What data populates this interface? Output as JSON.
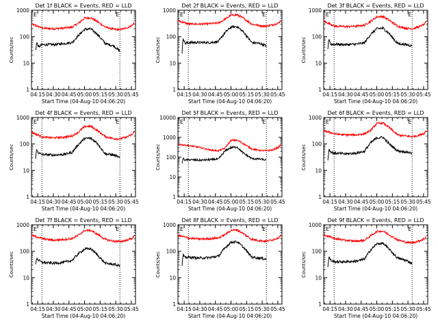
{
  "figure": {
    "x_start_label": "Start Time (04-Aug-10 04:06:20)",
    "xtick_labels": [
      "04:15",
      "04:30",
      "04:45",
      "05:00",
      "05:15",
      "05:30",
      "05:45"
    ],
    "ytick_labels": [
      "1",
      "10",
      "100",
      "1000"
    ],
    "ylabel": "Counts/sec",
    "marker_label": "E"
  },
  "chart_data": [
    {
      "type": "line",
      "title": "Det 1f BLACK = Events, RED = LLD",
      "xlabel": "Start Time (04-Aug-10 04:06:20)",
      "ylabel": "Counts/sec",
      "yscale": "log",
      "ylim": [
        1,
        1000
      ],
      "xlim": [
        "04:09",
        "05:49"
      ],
      "markers": [
        "04:19",
        "05:34"
      ],
      "series": [
        {
          "color": "#ff0000",
          "x": [
            "04:09",
            "04:20",
            "04:30",
            "04:40",
            "04:48",
            "04:54",
            "05:00",
            "05:06",
            "05:12",
            "05:20",
            "05:28",
            "05:34",
            "05:40",
            "05:46",
            "05:48"
          ],
          "y": [
            300,
            210,
            200,
            210,
            230,
            320,
            500,
            520,
            380,
            230,
            190,
            185,
            210,
            270,
            350
          ]
        },
        {
          "color": "#000000",
          "x": [
            "04:13",
            "04:14",
            "04:16",
            "04:19",
            "04:30",
            "04:40",
            "04:48",
            "04:54",
            "05:00",
            "05:06",
            "05:12",
            "05:20",
            "05:28",
            "05:34"
          ],
          "y": [
            30,
            60,
            40,
            50,
            50,
            55,
            60,
            110,
            190,
            195,
            130,
            55,
            45,
            28
          ]
        }
      ]
    },
    {
      "type": "line",
      "title": "Det 2f BLACK = Events, RED = LLD",
      "xlabel": "Start Time (04-Aug-10 04:06:20)",
      "ylabel": "Counts/sec",
      "yscale": "log",
      "ylim": [
        1,
        1000
      ],
      "xlim": [
        "04:09",
        "05:49"
      ],
      "markers": [
        "04:19",
        "05:34"
      ],
      "series": [
        {
          "color": "#ff0000",
          "x": [
            "04:09",
            "04:20",
            "04:30",
            "04:40",
            "04:48",
            "04:54",
            "05:00",
            "05:06",
            "05:12",
            "05:20",
            "05:28",
            "05:34",
            "05:40",
            "05:46",
            "05:48"
          ],
          "y": [
            400,
            300,
            300,
            310,
            330,
            450,
            650,
            670,
            500,
            300,
            260,
            250,
            280,
            330,
            420
          ]
        },
        {
          "color": "#000000",
          "x": [
            "04:13",
            "04:14",
            "04:16",
            "04:19",
            "04:30",
            "04:40",
            "04:48",
            "04:54",
            "05:00",
            "05:06",
            "05:12",
            "05:20",
            "05:28",
            "05:34"
          ],
          "y": [
            25,
            90,
            55,
            60,
            60,
            60,
            65,
            140,
            230,
            240,
            150,
            60,
            55,
            45
          ]
        }
      ]
    },
    {
      "type": "line",
      "title": "Det 3f BLACK = Events, RED = LLD",
      "xlabel": "Start Time (04-Aug-10 04:06:20)",
      "ylabel": "Counts/sec",
      "yscale": "log",
      "ylim": [
        1,
        1000
      ],
      "xlim": [
        "04:09",
        "05:49"
      ],
      "markers": [
        "04:19",
        "05:34"
      ],
      "series": [
        {
          "color": "#ff0000",
          "x": [
            "04:09",
            "04:20",
            "04:30",
            "04:40",
            "04:48",
            "04:54",
            "05:00",
            "05:06",
            "05:12",
            "05:20",
            "05:28",
            "05:34",
            "05:40",
            "05:46",
            "05:48"
          ],
          "y": [
            380,
            250,
            240,
            250,
            270,
            380,
            560,
            580,
            420,
            250,
            210,
            200,
            230,
            300,
            380
          ]
        },
        {
          "color": "#000000",
          "x": [
            "04:13",
            "04:14",
            "04:16",
            "04:19",
            "04:30",
            "04:40",
            "04:48",
            "04:54",
            "05:00",
            "05:06",
            "05:12",
            "05:20",
            "05:28",
            "05:34"
          ],
          "y": [
            35,
            85,
            50,
            52,
            50,
            52,
            58,
            120,
            200,
            210,
            130,
            55,
            50,
            45
          ]
        }
      ]
    },
    {
      "type": "line",
      "title": "Det 4f BLACK = Events, RED = LLD",
      "xlabel": "Start Time (04-Aug-10 04:06:20)",
      "ylabel": "Counts/sec",
      "yscale": "log",
      "ylim": [
        1,
        1000
      ],
      "xlim": [
        "04:09",
        "05:49"
      ],
      "markers": [
        "04:19",
        "05:34"
      ],
      "series": [
        {
          "color": "#ff0000",
          "x": [
            "04:09",
            "04:20",
            "04:30",
            "04:40",
            "04:48",
            "04:54",
            "05:00",
            "05:06",
            "05:12",
            "05:20",
            "05:28",
            "05:34",
            "05:40",
            "05:46",
            "05:48"
          ],
          "y": [
            280,
            180,
            170,
            180,
            200,
            280,
            450,
            470,
            330,
            190,
            160,
            155,
            180,
            230,
            300
          ]
        },
        {
          "color": "#000000",
          "x": [
            "04:13",
            "04:14",
            "04:16",
            "04:19",
            "04:30",
            "04:40",
            "04:48",
            "04:54",
            "05:00",
            "05:06",
            "05:12",
            "05:20",
            "05:28",
            "05:34"
          ],
          "y": [
            30,
            60,
            45,
            40,
            38,
            40,
            48,
            95,
            160,
            165,
            110,
            42,
            38,
            30
          ]
        }
      ]
    },
    {
      "type": "line",
      "title": "Det 5f BLACK = Events, RED = LLD",
      "xlabel": "Start Time (04-Aug-10 04:06:20)",
      "ylabel": "Counts/sec",
      "yscale": "log",
      "ylim": [
        1,
        10000
      ],
      "xlim": [
        "04:09",
        "05:49"
      ],
      "markers": [
        "04:19",
        "05:34"
      ],
      "series": [
        {
          "color": "#ff0000",
          "x": [
            "04:09",
            "04:20",
            "04:30",
            "04:40",
            "04:48",
            "04:54",
            "05:00",
            "05:06",
            "05:12",
            "05:20",
            "05:28",
            "05:34",
            "05:40",
            "05:46",
            "05:48"
          ],
          "y": [
            450,
            380,
            310,
            230,
            210,
            280,
            700,
            720,
            480,
            260,
            220,
            210,
            230,
            320,
            450
          ]
        },
        {
          "color": "#000000",
          "x": [
            "04:13",
            "04:14",
            "04:16",
            "04:19",
            "04:30",
            "04:40",
            "04:48",
            "04:54",
            "05:00",
            "05:06",
            "05:12",
            "05:20",
            "05:28",
            "05:34"
          ],
          "y": [
            50,
            85,
            70,
            75,
            70,
            75,
            80,
            200,
            310,
            320,
            160,
            85,
            80,
            70
          ]
        }
      ]
    },
    {
      "type": "line",
      "title": "Det 6f BLACK = Events, RED = LLD",
      "xlabel": "Start Time (04-Aug-10 04:06:20)",
      "ylabel": "Counts/sec",
      "yscale": "log",
      "ylim": [
        1,
        1000
      ],
      "xlim": [
        "04:09",
        "05:49"
      ],
      "markers": [
        "04:19",
        "05:34"
      ],
      "series": [
        {
          "color": "#ff0000",
          "x": [
            "04:09",
            "04:20",
            "04:30",
            "04:40",
            "04:48",
            "04:54",
            "05:00",
            "05:06",
            "05:12",
            "05:20",
            "05:28",
            "05:34",
            "05:40",
            "05:46",
            "05:48"
          ],
          "y": [
            320,
            240,
            220,
            220,
            240,
            320,
            600,
            620,
            420,
            220,
            200,
            190,
            210,
            260,
            340
          ]
        },
        {
          "color": "#000000",
          "x": [
            "04:13",
            "04:14",
            "04:16",
            "04:19",
            "04:30",
            "04:40",
            "04:48",
            "04:54",
            "05:00",
            "05:06",
            "05:12",
            "05:20",
            "05:28",
            "05:34"
          ],
          "y": [
            25,
            60,
            50,
            45,
            42,
            45,
            52,
            110,
            170,
            180,
            100,
            55,
            50,
            45
          ]
        }
      ]
    },
    {
      "type": "line",
      "title": "Det 7f BLACK = Events, RED = LLD",
      "xlabel": "Start Time (04-Aug-10 04:06:20)",
      "ylabel": "Counts/sec",
      "yscale": "log",
      "ylim": [
        1,
        1000
      ],
      "xlim": [
        "04:09",
        "05:49"
      ],
      "markers": [
        "04:19",
        "05:34"
      ],
      "series": [
        {
          "color": "#ff0000",
          "x": [
            "04:09",
            "04:20",
            "04:30",
            "04:40",
            "04:48",
            "04:54",
            "05:00",
            "05:06",
            "05:12",
            "05:20",
            "05:28",
            "05:34",
            "05:40",
            "05:46",
            "05:48"
          ],
          "y": [
            400,
            300,
            260,
            280,
            300,
            400,
            600,
            620,
            450,
            280,
            240,
            230,
            260,
            310,
            380
          ]
        },
        {
          "color": "#000000",
          "x": [
            "04:13",
            "04:14",
            "04:16",
            "04:19",
            "04:30",
            "04:40",
            "04:48",
            "04:54",
            "05:00",
            "05:06",
            "05:12",
            "05:20",
            "05:28",
            "05:34"
          ],
          "y": [
            35,
            55,
            45,
            38,
            35,
            38,
            45,
            80,
            120,
            125,
            75,
            35,
            32,
            28
          ]
        }
      ]
    },
    {
      "type": "line",
      "title": "Det 8f BLACK = Events, RED = LLD",
      "xlabel": "Start Time (04-Aug-10 04:06:20)",
      "ylabel": "Counts/sec",
      "yscale": "log",
      "ylim": [
        1,
        1000
      ],
      "xlim": [
        "04:09",
        "05:49"
      ],
      "markers": [
        "04:19",
        "05:34"
      ],
      "series": [
        {
          "color": "#ff0000",
          "x": [
            "04:09",
            "04:20",
            "04:30",
            "04:40",
            "04:48",
            "04:54",
            "05:00",
            "05:06",
            "05:12",
            "05:20",
            "05:28",
            "05:34",
            "05:40",
            "05:46",
            "05:48"
          ],
          "y": [
            400,
            310,
            290,
            300,
            320,
            420,
            620,
            640,
            460,
            280,
            250,
            240,
            270,
            330,
            420
          ]
        },
        {
          "color": "#000000",
          "x": [
            "04:13",
            "04:14",
            "04:16",
            "04:19",
            "04:30",
            "04:40",
            "04:48",
            "04:54",
            "05:00",
            "05:06",
            "05:12",
            "05:20",
            "05:28",
            "05:34"
          ],
          "y": [
            30,
            75,
            55,
            60,
            55,
            58,
            65,
            130,
            220,
            230,
            140,
            60,
            55,
            50
          ]
        }
      ]
    },
    {
      "type": "line",
      "title": "Det 9f BLACK = Events, RED = LLD",
      "xlabel": "Start Time (04-Aug-10 04:06:20)",
      "ylabel": "Counts/sec",
      "yscale": "log",
      "ylim": [
        1,
        1000
      ],
      "xlim": [
        "04:09",
        "05:49"
      ],
      "markers": [
        "04:19",
        "05:34"
      ],
      "series": [
        {
          "color": "#ff0000",
          "x": [
            "04:09",
            "04:20",
            "04:30",
            "04:40",
            "04:48",
            "04:54",
            "05:00",
            "05:06",
            "05:12",
            "05:20",
            "05:28",
            "05:34",
            "05:40",
            "05:46",
            "05:48"
          ],
          "y": [
            420,
            300,
            260,
            240,
            260,
            380,
            560,
            580,
            420,
            270,
            220,
            210,
            240,
            300,
            380
          ]
        },
        {
          "color": "#000000",
          "x": [
            "04:13",
            "04:14",
            "04:16",
            "04:19",
            "04:30",
            "04:40",
            "04:48",
            "04:54",
            "05:00",
            "05:06",
            "05:12",
            "05:20",
            "05:28",
            "05:34"
          ],
          "y": [
            25,
            60,
            45,
            40,
            40,
            42,
            50,
            110,
            190,
            200,
            120,
            55,
            45,
            35
          ]
        }
      ]
    }
  ]
}
